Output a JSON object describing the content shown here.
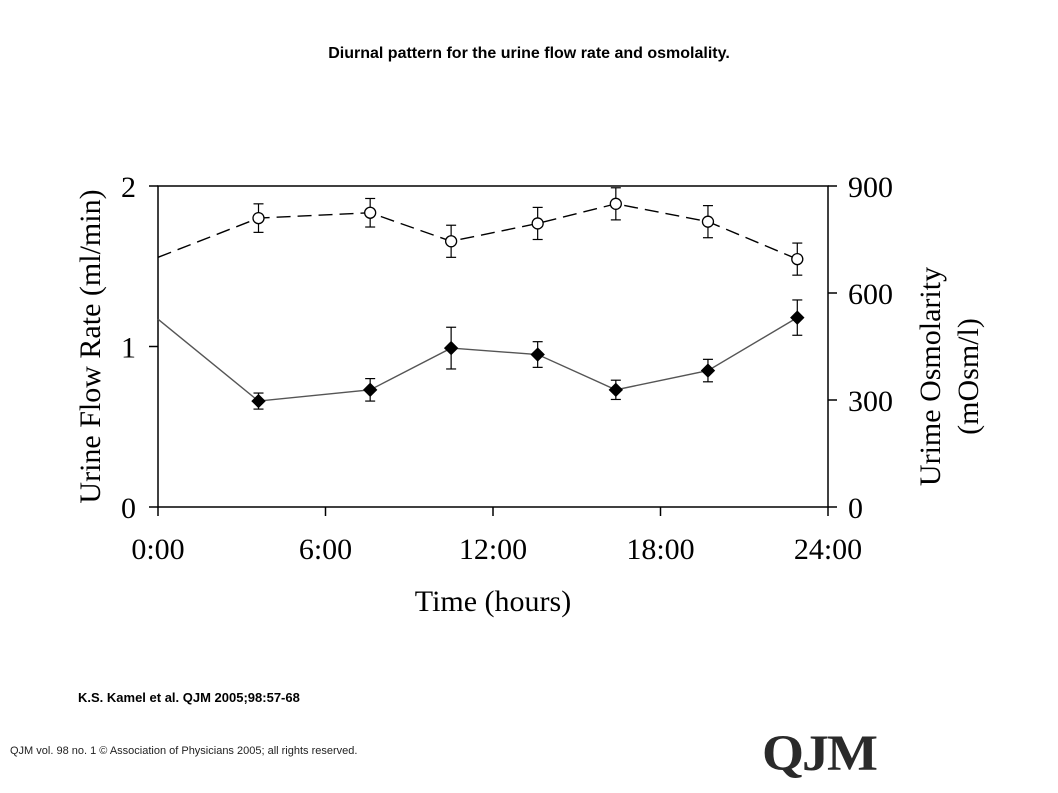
{
  "header": {
    "title": "Diurnal pattern for the urine flow rate and osmolality."
  },
  "footer": {
    "citation": "K.S. Kamel et al. QJM 2005;98:57-68",
    "copyright": "QJM vol. 98 no. 1 © Association of Physicians 2005; all rights reserved.",
    "logo_text": "QJM"
  },
  "chart_data": {
    "type": "line",
    "xlabel": "Time (hours)",
    "ylabel": "Urine Flow Rate (ml/min)",
    "y2label_line1": "Urime Osmolarity",
    "y2label_line2": "(mOsm/l)",
    "xlim": [
      0,
      24
    ],
    "ylim": [
      0,
      2
    ],
    "y2lim": [
      0,
      900
    ],
    "x_ticks": [
      0,
      6,
      12,
      18,
      24
    ],
    "x_tick_labels": [
      "0:00",
      "6:00",
      "12:00",
      "18:00",
      "24:00"
    ],
    "y_ticks": [
      0,
      1,
      2
    ],
    "y_tick_labels": [
      "0",
      "1",
      "2"
    ],
    "y2_ticks": [
      0,
      300,
      600,
      900
    ],
    "y2_tick_labels": [
      "0",
      "300",
      "600",
      "900"
    ],
    "grid": false,
    "legend": "none",
    "series": [
      {
        "axis": "right",
        "marker": "open-circle",
        "line_style": "dashed",
        "lead_in_value": 700,
        "x": [
          3.6,
          7.6,
          10.5,
          13.6,
          16.4,
          19.7,
          22.9
        ],
        "values": [
          810,
          825,
          745,
          795,
          850,
          800,
          695
        ],
        "err": [
          40,
          40,
          45,
          45,
          45,
          45,
          45
        ]
      },
      {
        "axis": "left",
        "marker": "filled-diamond",
        "line_style": "solid",
        "lead_in_value": 1.17,
        "x": [
          3.6,
          7.6,
          10.5,
          13.6,
          16.4,
          19.7,
          22.9
        ],
        "values": [
          0.66,
          0.73,
          0.99,
          0.95,
          0.73,
          0.85,
          1.18
        ],
        "err": [
          0.05,
          0.07,
          0.13,
          0.08,
          0.06,
          0.07,
          0.11
        ]
      }
    ]
  }
}
